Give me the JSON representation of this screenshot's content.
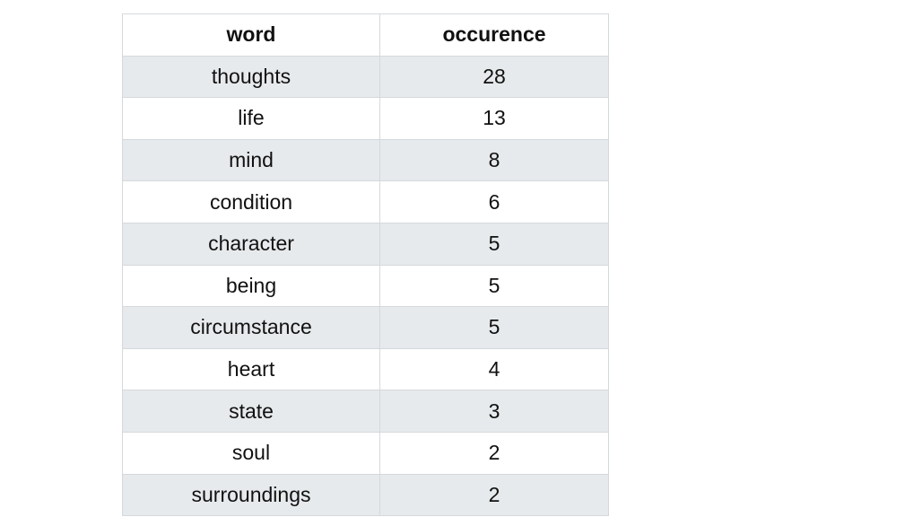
{
  "chart_data": {
    "type": "table",
    "columns": [
      "word",
      "occurence"
    ],
    "rows": [
      [
        "thoughts",
        28
      ],
      [
        "life",
        13
      ],
      [
        "mind",
        8
      ],
      [
        "condition",
        6
      ],
      [
        "character",
        5
      ],
      [
        "being",
        5
      ],
      [
        "circumstance",
        5
      ],
      [
        "heart",
        4
      ],
      [
        "state",
        3
      ],
      [
        "soul",
        2
      ],
      [
        "surroundings",
        2
      ]
    ],
    "colors": {
      "stripe": "#e7eaec",
      "background": "#ffffff",
      "grid": "#d6d9dc"
    }
  }
}
